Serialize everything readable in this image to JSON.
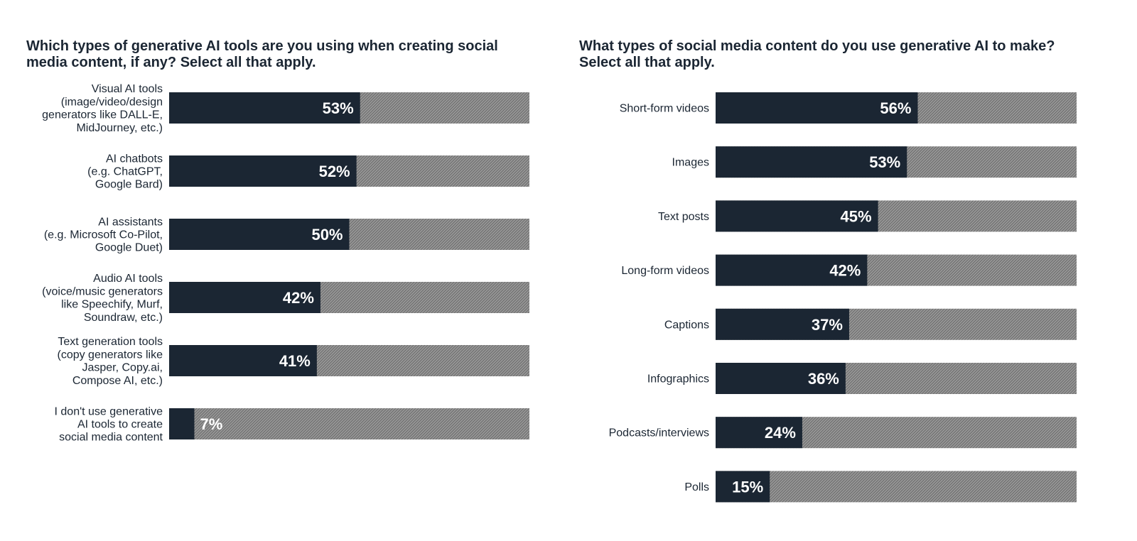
{
  "colors": {
    "fill": "#1b2633",
    "remainder": "#8a8a8a",
    "text": "#1b2633",
    "value_text": "#ffffff"
  },
  "chart_data": [
    {
      "type": "bar",
      "orientation": "horizontal",
      "title": "Which types of generative AI tools are you using when creating social media content, if any? Select all that apply.",
      "categories": [
        [
          "Visual AI tools",
          "(image/video/design",
          "generators like DALL-E,",
          "MidJourney, etc.)"
        ],
        [
          "AI chatbots",
          "(e.g. ChatGPT,",
          "Google Bard)"
        ],
        [
          "AI assistants",
          "(e.g. Microsoft Co-Pilot,",
          "Google Duet)"
        ],
        [
          "Audio AI tools",
          "(voice/music generators",
          "like Speechify, Murf,",
          "Soundraw, etc.)"
        ],
        [
          "Text generation tools",
          "(copy generators like",
          "Jasper, Copy.ai,",
          "Compose AI, etc.)"
        ],
        [
          "I don't use generative",
          "AI tools to create",
          "social media content"
        ]
      ],
      "values": [
        53,
        52,
        50,
        42,
        41,
        7
      ],
      "value_labels": [
        "53%",
        "52%",
        "50%",
        "42%",
        "41%",
        "7%"
      ],
      "xlim": [
        0,
        100
      ],
      "grid": false
    },
    {
      "type": "bar",
      "orientation": "horizontal",
      "title": "What types of social media content do you use generative AI to make? Select all that apply.",
      "categories": [
        [
          "Short-form videos"
        ],
        [
          "Images"
        ],
        [
          "Text posts"
        ],
        [
          "Long-form videos"
        ],
        [
          "Captions"
        ],
        [
          "Infographics"
        ],
        [
          "Podcasts/interviews"
        ],
        [
          "Polls"
        ]
      ],
      "values": [
        56,
        53,
        45,
        42,
        37,
        36,
        24,
        15
      ],
      "value_labels": [
        "56%",
        "53%",
        "45%",
        "42%",
        "37%",
        "36%",
        "24%",
        "15%"
      ],
      "xlim": [
        0,
        100
      ],
      "grid": false
    }
  ]
}
